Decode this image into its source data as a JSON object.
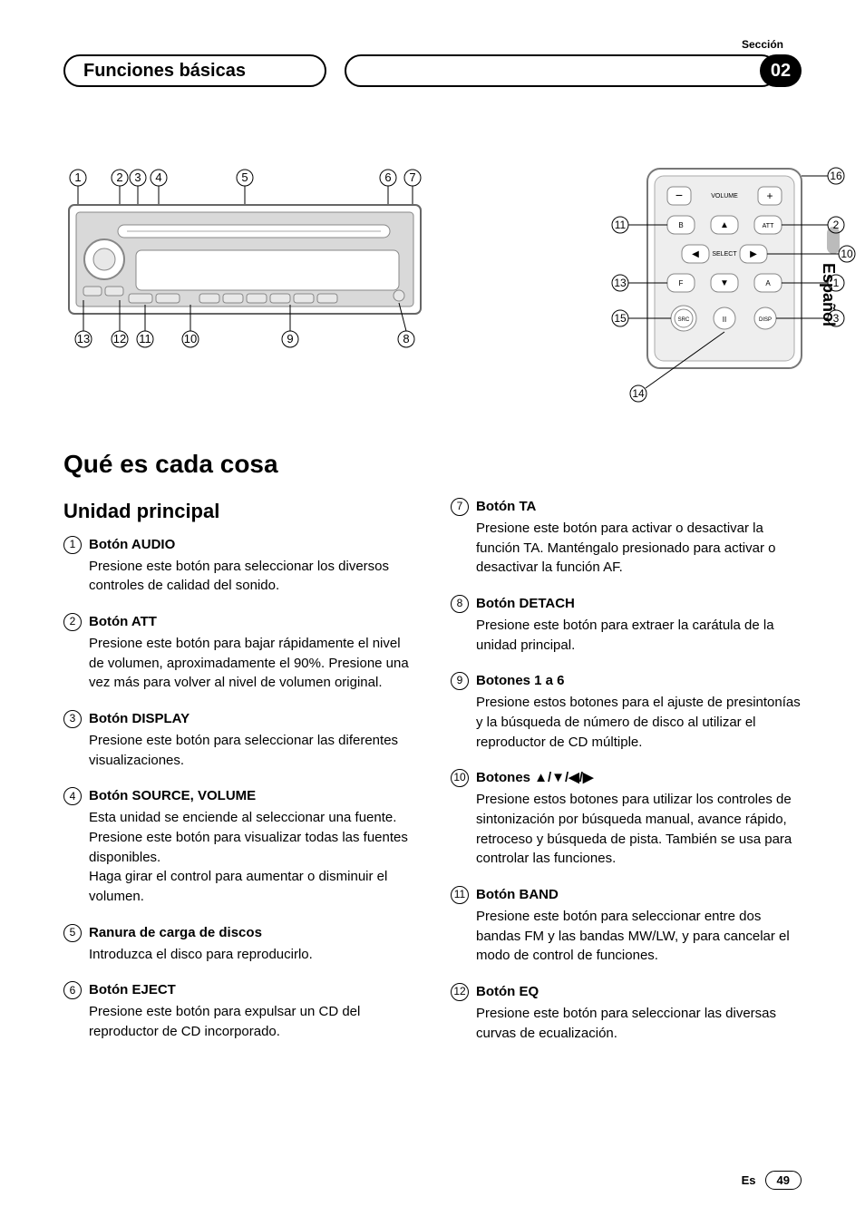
{
  "header": {
    "section_label": "Sección",
    "section_num": "02",
    "title_left": "Funciones básicas",
    "language_tab": "Español"
  },
  "diagrams": {
    "stereo_callouts_top": [
      "1",
      "2",
      "3",
      "4",
      "5",
      "6",
      "7"
    ],
    "stereo_callouts_bottom": [
      "13",
      "12",
      "11",
      "10",
      "9",
      "8"
    ],
    "remote_callouts_right": [
      "16",
      "2",
      "10",
      "1",
      "3"
    ],
    "remote_callouts_left": [
      "11",
      "13",
      "15"
    ],
    "remote_bottom": "14",
    "remote_labels": {
      "volume": "VOLUME",
      "select": "SELECT",
      "b": "B",
      "f": "F",
      "a": "A",
      "att": "ATT",
      "src": "SRC",
      "disp": "DISP",
      "pause": "II"
    }
  },
  "content": {
    "h1": "Qué es cada cosa",
    "h2": "Unidad principal",
    "left": [
      {
        "n": "1",
        "t": "Botón AUDIO",
        "b": "Presione este botón para seleccionar los diversos controles de calidad del sonido."
      },
      {
        "n": "2",
        "t": "Botón ATT",
        "b": "Presione este botón para bajar rápidamente el nivel de volumen, aproximadamente el 90%. Presione una vez más para volver al nivel de volumen original."
      },
      {
        "n": "3",
        "t": "Botón DISPLAY",
        "b": "Presione este botón para seleccionar las diferentes visualizaciones."
      },
      {
        "n": "4",
        "t": "Botón SOURCE, VOLUME",
        "b": "Esta unidad se enciende al seleccionar una fuente. Presione este botón para visualizar todas las fuentes disponibles.\nHaga girar el control para aumentar o disminuir el volumen."
      },
      {
        "n": "5",
        "t": "Ranura de carga de discos",
        "b": "Introduzca el disco para reproducirlo."
      },
      {
        "n": "6",
        "t": "Botón EJECT",
        "b": "Presione este botón para expulsar un CD del reproductor de CD incorporado."
      }
    ],
    "right": [
      {
        "n": "7",
        "t": "Botón TA",
        "b": "Presione este botón para activar o desactivar la función TA. Manténgalo presionado para activar o desactivar la función AF."
      },
      {
        "n": "8",
        "t": "Botón DETACH",
        "b": "Presione este botón para extraer la carátula de la unidad principal."
      },
      {
        "n": "9",
        "t": "Botones 1 a 6",
        "b": "Presione estos botones para el ajuste de presintonías y la búsqueda de número de disco al utilizar el reproductor de CD múltiple."
      },
      {
        "n": "10",
        "t": "Botones ▲/▼/◀/▶",
        "b": "Presione estos botones para utilizar los controles de sintonización por búsqueda manual, avance rápido, retroceso y búsqueda de pista. También se usa para controlar las funciones."
      },
      {
        "n": "11",
        "t": "Botón BAND",
        "b": "Presione este botón para seleccionar entre dos bandas FM y las bandas MW/LW, y para cancelar el modo de control de funciones."
      },
      {
        "n": "12",
        "t": "Botón EQ",
        "b": "Presione este botón para seleccionar las diversas curvas de ecualización."
      }
    ]
  },
  "footer": {
    "lang": "Es",
    "page": "49"
  }
}
